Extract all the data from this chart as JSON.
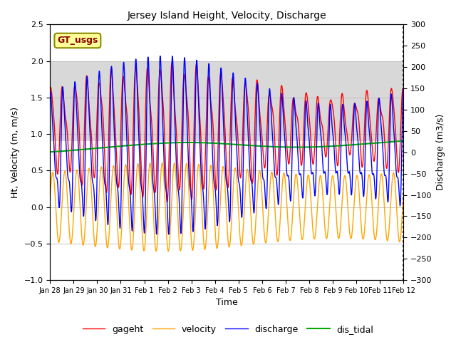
{
  "title": "Jersey Island Height, Velocity, Discharge",
  "xlabel": "Time",
  "ylabel_left": "Ht, Velocity (m, m/s)",
  "ylabel_right": "Discharge (m3/s)",
  "ylim_left": [
    -1.0,
    2.5
  ],
  "ylim_right": [
    -300,
    300
  ],
  "xtick_labels": [
    "Jan 28",
    "Jan 29",
    "Jan 30",
    "Jan 31",
    "Feb 1",
    "Feb 2",
    "Feb 3",
    "Feb 4",
    "Feb 5",
    "Feb 6",
    "Feb 7",
    "Feb 8",
    "Feb 9",
    "Feb 10",
    "Feb 11",
    "Feb 12"
  ],
  "xtick_positions": [
    0,
    1,
    2,
    3,
    4,
    5,
    6,
    7,
    8,
    9,
    10,
    11,
    12,
    13,
    14,
    15
  ],
  "colors": {
    "gageht": "#ff0000",
    "velocity": "#ffa500",
    "discharge": "#0000ff",
    "dis_tidal": "#00aa00"
  },
  "legend_labels": [
    "gageht",
    "velocity",
    "discharge",
    "dis_tidal"
  ],
  "gt_usgs_label": "GT_usgs",
  "gt_usgs_bg": "#ffff99",
  "gt_usgs_text_color": "#8b0000",
  "gt_usgs_border": "#8b8b00",
  "background_color": "#ffffff",
  "shaded_band": [
    0.9,
    2.0
  ],
  "shaded_color": "#d8d8d8",
  "tidal_period_hours": 12.4,
  "linewidth_main": 1.0,
  "linewidth_tidal": 1.5,
  "figsize": [
    6.4,
    4.8
  ],
  "dpi": 100
}
